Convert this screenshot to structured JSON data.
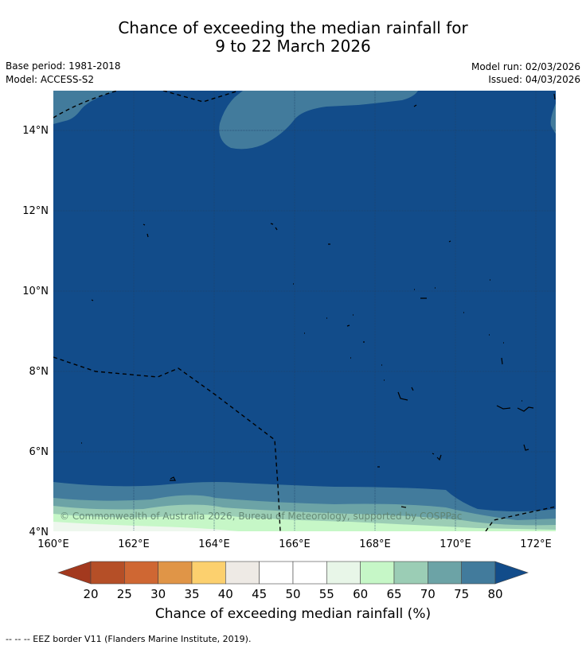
{
  "title": {
    "line1": "Chance of exceeding the median rainfall for",
    "line2": "9 to 22 March 2026"
  },
  "meta": {
    "base_period": "Base period: 1981-2018",
    "model": "Model: ACCESS-S2",
    "model_run": "Model run: 02/03/2026",
    "issued": "Issued: 04/03/2026"
  },
  "map": {
    "x_ticks": [
      "160°E",
      "162°E",
      "164°E",
      "166°E",
      "168°E",
      "170°E",
      "172°E"
    ],
    "y_ticks": [
      "14°N",
      "12°N",
      "10°N",
      "8°N",
      "6°N",
      "4°N"
    ],
    "copyright": "© Commonwealth of Australia 2026, Bureau of Meteorology, supported by COSPPac",
    "dominant_category": "75-80+",
    "colors": {
      "dominant": "#124c8a",
      "band_75": "#427b9c",
      "band_70": "#6ca3a6",
      "band_65": "#9bcdb5",
      "band_60": "#c6f7c7",
      "land": "#000000"
    }
  },
  "colorbar": {
    "ticks": [
      "20",
      "25",
      "30",
      "35",
      "40",
      "45",
      "50",
      "55",
      "60",
      "65",
      "70",
      "75",
      "80"
    ],
    "colors": [
      "#a3391e",
      "#b54f27",
      "#cf6733",
      "#e09547",
      "#fcd06e",
      "#eeeae5",
      "#ffffff",
      "#ffffff",
      "#e8f6e8",
      "#c6f7c7",
      "#9bcdb5",
      "#6ca3a6",
      "#427b9c",
      "#124c8a"
    ],
    "title": "Chance of exceeding median rainfall (%)"
  },
  "footer": {
    "legend": "--  --  -- EEZ border V11 (Flanders Marine Institute, 2019)."
  }
}
